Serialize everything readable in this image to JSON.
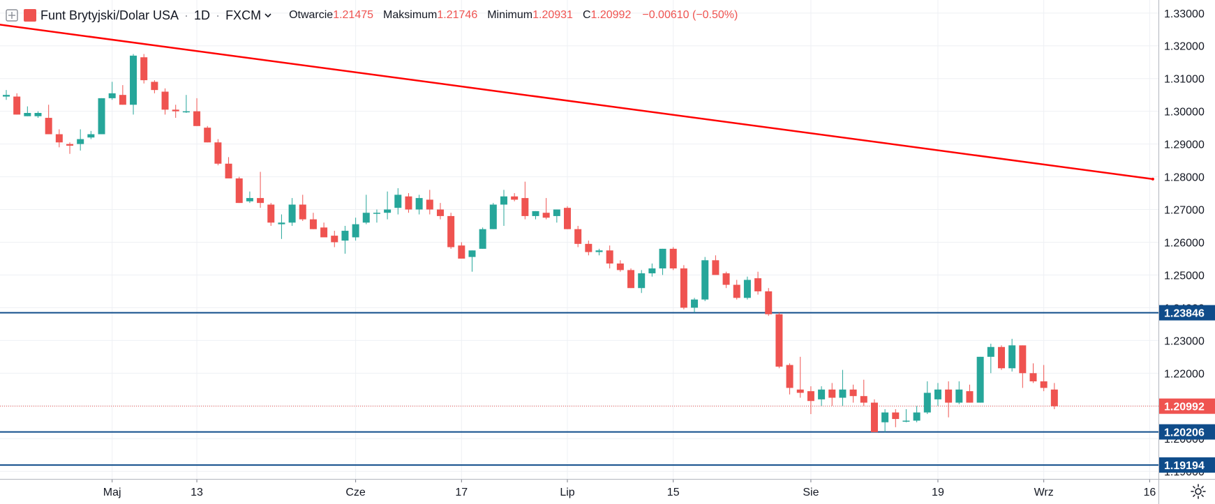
{
  "header": {
    "symbol": "Funt Brytyjski/Dolar USA",
    "interval": "1D",
    "exchange": "FXCM",
    "open_label": "Otwarcie",
    "open_value": "1.21475",
    "high_label": "Maksimum",
    "high_value": "1.21746",
    "low_label": "Minimum",
    "low_value": "1.20931",
    "close_label": "C",
    "close_value": "1.20992",
    "change": "−0.00610 (−0.50%)"
  },
  "chart_data": {
    "type": "candlestick",
    "ylim": [
      1.1877,
      1.334
    ],
    "y_ticks": [
      "1.19000",
      "1.20000",
      "1.21000",
      "1.22000",
      "1.23000",
      "1.24000",
      "1.25000",
      "1.26000",
      "1.27000",
      "1.28000",
      "1.29000",
      "1.30000",
      "1.31000",
      "1.32000",
      "1.33000"
    ],
    "x_ticks": [
      {
        "label": "Maj",
        "index": 10
      },
      {
        "label": "13",
        "index": 18
      },
      {
        "label": "Cze",
        "index": 33
      },
      {
        "label": "17",
        "index": 43
      },
      {
        "label": "Lip",
        "index": 53
      },
      {
        "label": "15",
        "index": 63
      },
      {
        "label": "Sie",
        "index": 76
      },
      {
        "label": "19",
        "index": 88
      },
      {
        "label": "Wrz",
        "index": 98
      },
      {
        "label": "16",
        "index": 108
      }
    ],
    "candles": [
      [
        1.3045,
        1.3065,
        1.3035,
        1.305
      ],
      [
        1.3045,
        1.3055,
        1.299,
        1.299
      ],
      [
        1.2985,
        1.3015,
        1.2985,
        1.2995
      ],
      [
        1.2985,
        1.3,
        1.298,
        1.2995
      ],
      [
        1.298,
        1.302,
        1.293,
        1.293
      ],
      [
        1.293,
        1.2945,
        1.289,
        1.2905
      ],
      [
        1.29,
        1.2905,
        1.287,
        1.2895
      ],
      [
        1.29,
        1.2945,
        1.288,
        1.2915
      ],
      [
        1.292,
        1.294,
        1.2915,
        1.293
      ],
      [
        1.293,
        1.304,
        1.293,
        1.304
      ],
      [
        1.304,
        1.309,
        1.3035,
        1.3055
      ],
      [
        1.305,
        1.308,
        1.302,
        1.302
      ],
      [
        1.302,
        1.3175,
        1.299,
        1.317
      ],
      [
        1.3165,
        1.3175,
        1.3085,
        1.3095
      ],
      [
        1.309,
        1.3095,
        1.3055,
        1.3065
      ],
      [
        1.306,
        1.307,
        1.299,
        1.3005
      ],
      [
        1.3005,
        1.302,
        1.298,
        1.3
      ],
      [
        1.3,
        1.305,
        1.2995,
        1.3
      ],
      [
        1.3,
        1.304,
        1.2955,
        1.2955
      ],
      [
        1.295,
        1.2955,
        1.2905,
        1.2905
      ],
      [
        1.2905,
        1.2915,
        1.2835,
        1.284
      ],
      [
        1.284,
        1.286,
        1.28,
        1.2795
      ],
      [
        1.2795,
        1.28,
        1.272,
        1.272
      ],
      [
        1.2725,
        1.2755,
        1.272,
        1.2735
      ],
      [
        1.2735,
        1.2815,
        1.2705,
        1.272
      ],
      [
        1.2715,
        1.272,
        1.265,
        1.266
      ],
      [
        1.2655,
        1.2685,
        1.261,
        1.266
      ],
      [
        1.266,
        1.2735,
        1.265,
        1.2715
      ],
      [
        1.2715,
        1.2745,
        1.2665,
        1.267
      ],
      [
        1.267,
        1.269,
        1.264,
        1.264
      ],
      [
        1.2645,
        1.266,
        1.262,
        1.2615
      ],
      [
        1.262,
        1.2635,
        1.2585,
        1.26
      ],
      [
        1.2605,
        1.265,
        1.2565,
        1.2635
      ],
      [
        1.2615,
        1.2675,
        1.2605,
        1.2655
      ],
      [
        1.266,
        1.2745,
        1.2655,
        1.269
      ],
      [
        1.269,
        1.27,
        1.266,
        1.269
      ],
      [
        1.269,
        1.2755,
        1.267,
        1.27
      ],
      [
        1.2705,
        1.2765,
        1.2685,
        1.2745
      ],
      [
        1.274,
        1.275,
        1.269,
        1.27
      ],
      [
        1.27,
        1.2745,
        1.2685,
        1.2735
      ],
      [
        1.273,
        1.276,
        1.2685,
        1.27
      ],
      [
        1.27,
        1.272,
        1.267,
        1.268
      ],
      [
        1.268,
        1.269,
        1.258,
        1.2585
      ],
      [
        1.259,
        1.26,
        1.255,
        1.255
      ],
      [
        1.2555,
        1.2575,
        1.251,
        1.2575
      ],
      [
        1.258,
        1.2645,
        1.258,
        1.264
      ],
      [
        1.264,
        1.272,
        1.264,
        1.2715
      ],
      [
        1.2715,
        1.276,
        1.265,
        1.274
      ],
      [
        1.274,
        1.275,
        1.2725,
        1.273
      ],
      [
        1.2735,
        1.2785,
        1.267,
        1.268
      ],
      [
        1.268,
        1.2695,
        1.267,
        1.2695
      ],
      [
        1.269,
        1.2735,
        1.267,
        1.2675
      ],
      [
        1.268,
        1.27,
        1.266,
        1.27
      ],
      [
        1.2705,
        1.271,
        1.264,
        1.264
      ],
      [
        1.264,
        1.265,
        1.2585,
        1.2595
      ],
      [
        1.2595,
        1.2605,
        1.256,
        1.257
      ],
      [
        1.257,
        1.258,
        1.256,
        1.2575
      ],
      [
        1.2575,
        1.259,
        1.252,
        1.2535
      ],
      [
        1.2535,
        1.2545,
        1.251,
        1.2515
      ],
      [
        1.2515,
        1.252,
        1.246,
        1.246
      ],
      [
        1.246,
        1.2515,
        1.2445,
        1.2505
      ],
      [
        1.2505,
        1.2535,
        1.2495,
        1.252
      ],
      [
        1.252,
        1.258,
        1.25,
        1.258
      ],
      [
        1.258,
        1.2585,
        1.2515,
        1.252
      ],
      [
        1.252,
        1.253,
        1.2395,
        1.24
      ],
      [
        1.24,
        1.243,
        1.2385,
        1.2425
      ],
      [
        1.2425,
        1.2555,
        1.242,
        1.2545
      ],
      [
        1.2545,
        1.256,
        1.25,
        1.25
      ],
      [
        1.2505,
        1.251,
        1.246,
        1.247
      ],
      [
        1.247,
        1.2485,
        1.2425,
        1.243
      ],
      [
        1.243,
        1.2495,
        1.2425,
        1.2485
      ],
      [
        1.249,
        1.251,
        1.244,
        1.245
      ],
      [
        1.245,
        1.246,
        1.2375,
        1.238
      ],
      [
        1.238,
        1.2385,
        1.2215,
        1.222
      ],
      [
        1.2225,
        1.223,
        1.2135,
        1.2155
      ],
      [
        1.215,
        1.225,
        1.2125,
        1.214
      ],
      [
        1.2145,
        1.216,
        1.2075,
        1.2115
      ],
      [
        1.212,
        1.216,
        1.21,
        1.215
      ],
      [
        1.215,
        1.217,
        1.21,
        1.2125
      ],
      [
        1.2125,
        1.221,
        1.21,
        1.215
      ],
      [
        1.215,
        1.2165,
        1.211,
        1.213
      ],
      [
        1.213,
        1.218,
        1.21,
        1.211
      ],
      [
        1.211,
        1.212,
        1.202,
        1.202
      ],
      [
        1.205,
        1.209,
        1.202,
        1.208
      ],
      [
        1.208,
        1.209,
        1.2035,
        1.206
      ],
      [
        1.2055,
        1.209,
        1.205,
        1.2055
      ],
      [
        1.2055,
        1.21,
        1.205,
        1.208
      ],
      [
        1.208,
        1.2175,
        1.2075,
        1.214
      ],
      [
        1.212,
        1.217,
        1.21,
        1.215
      ],
      [
        1.215,
        1.2175,
        1.2065,
        1.211
      ],
      [
        1.211,
        1.2175,
        1.2105,
        1.215
      ],
      [
        1.2145,
        1.2165,
        1.211,
        1.211
      ],
      [
        1.211,
        1.225,
        1.211,
        1.225
      ],
      [
        1.225,
        1.229,
        1.22,
        1.228
      ],
      [
        1.228,
        1.2285,
        1.221,
        1.2215
      ],
      [
        1.2215,
        1.2305,
        1.2205,
        1.2285
      ],
      [
        1.2285,
        1.2285,
        1.2155,
        1.22
      ],
      [
        1.22,
        1.223,
        1.217,
        1.2175
      ],
      [
        1.2175,
        1.2225,
        1.2145,
        1.2155
      ],
      [
        1.215,
        1.217,
        1.209,
        1.2099
      ]
    ],
    "up_color": "#26a69a",
    "down_color": "#ef5350",
    "trend_line": {
      "color": "#ff0000",
      "from": {
        "index": -3,
        "price": 1.3275
      },
      "to": {
        "index": 108.3,
        "price": 1.2793
      }
    },
    "horizontal_lines": [
      {
        "price": 1.23846,
        "label": "1.23846",
        "color": "#0f4c8a"
      },
      {
        "price": 1.20206,
        "label": "1.20206",
        "color": "#0f4c8a"
      },
      {
        "price": 1.19194,
        "label": "1.19194",
        "color": "#0f4c8a"
      }
    ],
    "last_price": {
      "price": 1.20992,
      "label": "1.20992",
      "color": "#ef5350"
    }
  }
}
